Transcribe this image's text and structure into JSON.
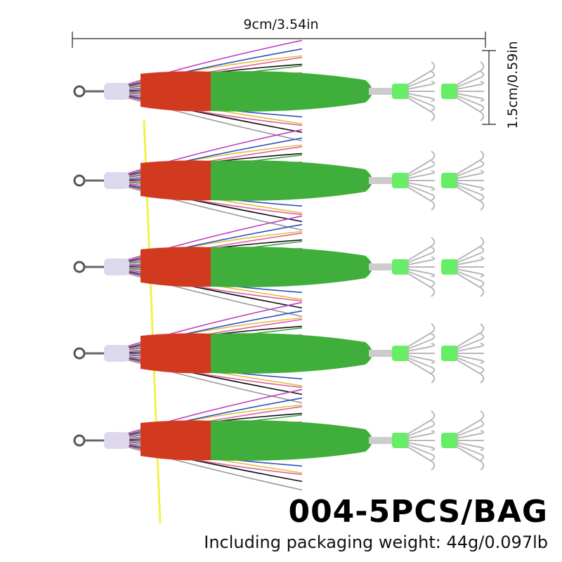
{
  "dimensions": {
    "length_label": "9cm/3.54in",
    "width_label": "1.5cm/0.59in"
  },
  "product": {
    "title": "004-5PCS/BAG",
    "weight_label": "Including packaging weight:  44g/0.097lb"
  },
  "colors": {
    "body": "#3fae3a",
    "head": "#d23a20",
    "glow_bead": "#66ee66",
    "hooks": "#b8b8b8"
  },
  "lure_icon": "squid-jig-icon"
}
